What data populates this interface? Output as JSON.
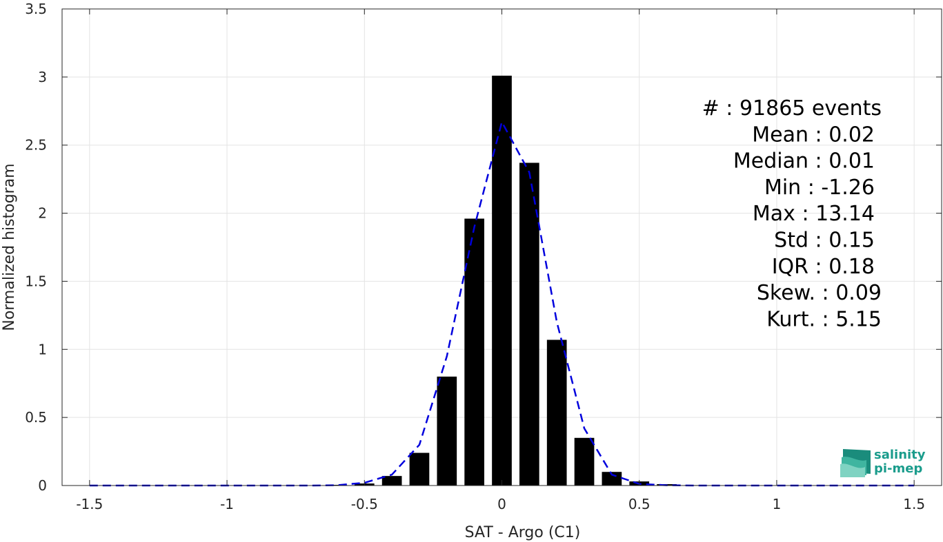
{
  "chart_data": {
    "type": "bar",
    "xlabel": "SAT - Argo (C1)",
    "ylabel": "Normalized histogram",
    "xlim": [
      -1.6,
      1.6
    ],
    "ylim": [
      0,
      3.5
    ],
    "grid": true,
    "x_ticks": [
      -1.5,
      -1,
      -0.5,
      0,
      0.5,
      1,
      1.5
    ],
    "x_tick_labels": [
      "-1.5",
      "-1",
      "-0.5",
      "0",
      "0.5",
      "1",
      "1.5"
    ],
    "y_ticks": [
      0,
      0.5,
      1,
      1.5,
      2,
      2.5,
      3,
      3.5
    ],
    "y_tick_labels": [
      "0",
      "0.5",
      "1",
      "1.5",
      "2",
      "2.5",
      "3",
      "3.5"
    ],
    "bar_color": "#000000",
    "bars": {
      "x": [
        -0.6,
        -0.5,
        -0.4,
        -0.3,
        -0.2,
        -0.1,
        0.0,
        0.1,
        0.2,
        0.3,
        0.4,
        0.5,
        0.6,
        0.7
      ],
      "values": [
        0.005,
        0.015,
        0.07,
        0.24,
        0.8,
        1.96,
        3.01,
        2.37,
        1.07,
        0.35,
        0.1,
        0.03,
        0.01,
        0.003
      ]
    },
    "fit": {
      "name": "",
      "color": "#0000dd",
      "style": "dashed",
      "x": [
        -1.5,
        -1.4,
        -1.3,
        -1.2,
        -1.1,
        -1.0,
        -0.9,
        -0.8,
        -0.7,
        -0.6,
        -0.5,
        -0.4,
        -0.3,
        -0.2,
        -0.1,
        0.0,
        0.1,
        0.2,
        0.3,
        0.4,
        0.5,
        0.6,
        0.7,
        0.8,
        0.9,
        1.0,
        1.1,
        1.2,
        1.3,
        1.4,
        1.5
      ],
      "y": [
        0,
        0,
        0,
        0,
        0,
        0,
        0,
        0,
        0,
        0.002,
        0.02,
        0.08,
        0.3,
        0.95,
        1.9,
        2.67,
        2.3,
        1.2,
        0.42,
        0.08,
        0.012,
        0.002,
        0,
        0,
        0,
        0,
        0,
        0,
        0,
        0,
        0
      ]
    },
    "stats_lines": [
      "#  : 91865 events",
      "Mean : 0.02",
      "Median : 0.01",
      "Min : -1.26",
      "Max : 13.14",
      "Std : 0.15",
      "IQR : 0.18",
      "Skew. : 0.09",
      "Kurt. : 5.15"
    ],
    "logo": {
      "line1": "salinity",
      "line2": "pi-mep",
      "color": "#1a9c8c"
    }
  }
}
